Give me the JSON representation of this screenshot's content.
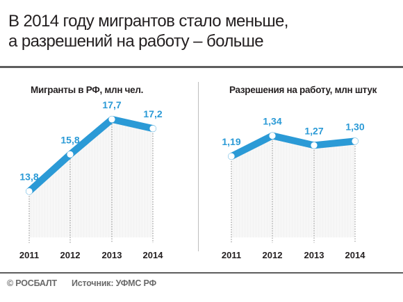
{
  "headline": {
    "line1": "В 2014 году мигрантов стало меньше,",
    "line2": "а разрешений на работу – больше"
  },
  "colors": {
    "accent": "#2b9ad6",
    "dark": "#231f20",
    "divider": "#5d5d5d",
    "footer": "#6a6a6a"
  },
  "footer": {
    "brand": "© РОСБАЛТ",
    "source": "Источник: УФМС РФ"
  },
  "chart_data": [
    {
      "type": "line",
      "title": "Мигранты в РФ, млн чел.",
      "categories": [
        "2011",
        "2012",
        "2013",
        "2014"
      ],
      "values": [
        13.8,
        15.8,
        17.7,
        17.2
      ],
      "labels": [
        "13,8",
        "15,8",
        "17,7",
        "17,2"
      ],
      "ylim": [
        11.3,
        18.9
      ],
      "grid": false
    },
    {
      "type": "line",
      "title": "Разрешения на работу, млн штук",
      "categories": [
        "2011",
        "2012",
        "2013",
        "2014"
      ],
      "values": [
        1.19,
        1.34,
        1.27,
        1.3
      ],
      "labels": [
        "1,19",
        "1,34",
        "1,27",
        "1,30"
      ],
      "ylim": [
        0.6,
        1.62
      ],
      "grid": false
    }
  ]
}
